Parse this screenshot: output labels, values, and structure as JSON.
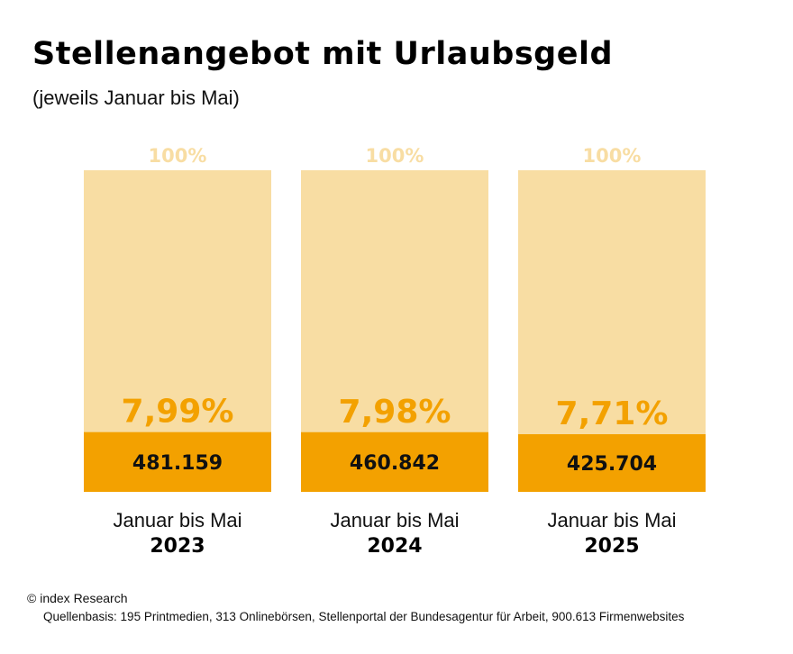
{
  "chart_data": {
    "type": "bar",
    "title": "Stellenangebot mit Urlaubsgeld",
    "subtitle": "(jeweils Januar bis Mai)",
    "categories": [
      "2023",
      "2024",
      "2025"
    ],
    "category_prefix": "Januar bis Mai",
    "total_label": "100%",
    "shares_percent": [
      7.99,
      7.98,
      7.71
    ],
    "share_labels": [
      "7,99%",
      "7,98%",
      "7,71%"
    ],
    "counts": [
      "481.159",
      "460.842",
      "425.704"
    ],
    "ylim": [
      0,
      100
    ],
    "colors": {
      "total_bar": "#f8dda3",
      "share_bar": "#f3a100",
      "total_label": "#f8dda3",
      "share_label": "#f3a100"
    }
  },
  "footer": {
    "copyright": "© index Research",
    "source": "Quellenbasis: 195 Printmedien, 313 Onlinebörsen, Stellenportal der Bundesagentur für Arbeit, 900.613 Firmenwebsites"
  }
}
